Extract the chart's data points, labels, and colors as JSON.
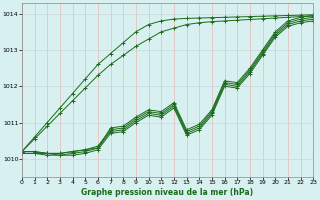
{
  "title": "Graphe pression niveau de la mer (hPa)",
  "bg_color": "#d8f0f0",
  "grid_color_v": "#e8b8b8",
  "grid_color_h": "#c8d8d8",
  "line_color": "#1a6b1a",
  "x_min": 0,
  "x_max": 23,
  "y_min": 1009.5,
  "y_max": 1014.3,
  "yticks": [
    1010,
    1011,
    1012,
    1013,
    1014
  ],
  "xticks": [
    0,
    1,
    2,
    3,
    4,
    5,
    6,
    7,
    8,
    9,
    10,
    11,
    12,
    13,
    14,
    15,
    16,
    17,
    18,
    19,
    20,
    21,
    22,
    23
  ],
  "series": [
    [
      1010.2,
      1010.2,
      1010.15,
      1010.15,
      1010.2,
      1010.25,
      1010.3,
      1010.85,
      1010.9,
      1011.15,
      1011.35,
      1011.3,
      1011.55,
      1010.8,
      1010.95,
      1011.35,
      1012.15,
      1012.1,
      1012.5,
      1013.0,
      1013.5,
      1013.8,
      1013.9,
      1013.95
    ],
    [
      1010.2,
      1010.2,
      1010.15,
      1010.15,
      1010.2,
      1010.25,
      1010.35,
      1010.8,
      1010.85,
      1011.1,
      1011.3,
      1011.25,
      1011.5,
      1010.75,
      1010.9,
      1011.3,
      1012.1,
      1012.05,
      1012.45,
      1012.95,
      1013.45,
      1013.75,
      1013.85,
      1013.9
    ],
    [
      1010.15,
      1010.15,
      1010.15,
      1010.1,
      1010.15,
      1010.2,
      1010.3,
      1010.75,
      1010.8,
      1011.05,
      1011.25,
      1011.2,
      1011.45,
      1010.7,
      1010.85,
      1011.25,
      1012.05,
      1012.0,
      1012.4,
      1012.9,
      1013.4,
      1013.7,
      1013.8,
      1013.85
    ],
    [
      1010.15,
      1010.15,
      1010.1,
      1010.1,
      1010.1,
      1010.15,
      1010.25,
      1010.7,
      1010.75,
      1011.0,
      1011.2,
      1011.15,
      1011.4,
      1010.65,
      1010.8,
      1011.2,
      1012.0,
      1011.95,
      1012.35,
      1012.85,
      1013.35,
      1013.65,
      1013.75,
      1013.8
    ],
    [
      1010.2,
      1010.6,
      1011.0,
      1011.4,
      1011.8,
      1012.2,
      1012.6,
      1012.9,
      1013.2,
      1013.5,
      1013.7,
      1013.8,
      1013.85,
      1013.87,
      1013.88,
      1013.89,
      1013.9,
      1013.91,
      1013.92,
      1013.93,
      1013.94,
      1013.95,
      1013.96,
      1013.97
    ],
    [
      1010.2,
      1010.55,
      1010.9,
      1011.25,
      1011.6,
      1011.95,
      1012.3,
      1012.6,
      1012.85,
      1013.1,
      1013.3,
      1013.5,
      1013.6,
      1013.7,
      1013.75,
      1013.78,
      1013.8,
      1013.82,
      1013.84,
      1013.86,
      1013.88,
      1013.9,
      1013.92,
      1013.94
    ]
  ]
}
